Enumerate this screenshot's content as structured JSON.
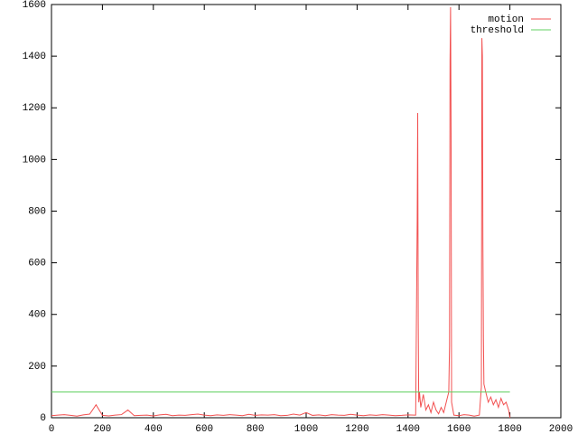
{
  "chart_data": {
    "type": "line",
    "xlim": [
      0,
      2000
    ],
    "xticks": [
      0,
      200,
      400,
      600,
      800,
      1000,
      1200,
      1400,
      1600,
      1800,
      2000
    ],
    "ylim": [
      0,
      1600
    ],
    "yticks": [
      0,
      200,
      400,
      600,
      800,
      1000,
      1200,
      1400,
      1600
    ],
    "legend": "top-right",
    "series": [
      {
        "name": "motion",
        "color": "#f25050",
        "x": [
          0,
          25,
          50,
          75,
          100,
          125,
          150,
          175,
          200,
          225,
          250,
          275,
          300,
          325,
          350,
          375,
          400,
          425,
          450,
          475,
          500,
          525,
          550,
          575,
          600,
          625,
          650,
          675,
          700,
          725,
          750,
          775,
          800,
          825,
          850,
          875,
          900,
          925,
          950,
          975,
          1000,
          1025,
          1050,
          1075,
          1100,
          1125,
          1150,
          1175,
          1200,
          1225,
          1250,
          1275,
          1300,
          1325,
          1350,
          1375,
          1400,
          1425,
          1430,
          1436,
          1438,
          1440,
          1442,
          1445,
          1450,
          1460,
          1470,
          1480,
          1490,
          1500,
          1510,
          1520,
          1530,
          1540,
          1550,
          1560,
          1563,
          1565,
          1567,
          1569,
          1571,
          1580,
          1600,
          1620,
          1640,
          1660,
          1680,
          1688,
          1690,
          1692,
          1694,
          1696,
          1698,
          1705,
          1715,
          1725,
          1735,
          1745,
          1755,
          1765,
          1775,
          1785,
          1795,
          1800
        ],
        "values": [
          8,
          10,
          12,
          9,
          6,
          11,
          14,
          50,
          9,
          7,
          10,
          12,
          30,
          8,
          9,
          10,
          7,
          11,
          13,
          8,
          10,
          9,
          12,
          14,
          10,
          8,
          11,
          9,
          12,
          10,
          8,
          13,
          9,
          11,
          10,
          12,
          8,
          9,
          14,
          10,
          20,
          9,
          11,
          8,
          12,
          10,
          9,
          13,
          10,
          8,
          11,
          9,
          12,
          10,
          8,
          9,
          11,
          10,
          10,
          760,
          1180,
          380,
          60,
          100,
          40,
          90,
          30,
          50,
          20,
          60,
          30,
          15,
          40,
          20,
          60,
          100,
          280,
          1380,
          1590,
          1100,
          60,
          10,
          8,
          12,
          10,
          6,
          10,
          120,
          1470,
          1400,
          670,
          310,
          130,
          100,
          60,
          80,
          50,
          70,
          40,
          75,
          50,
          60,
          30,
          0
        ]
      },
      {
        "name": "threshold",
        "color": "#60d060",
        "x": [
          0,
          1800
        ],
        "values": [
          100,
          100
        ]
      }
    ]
  }
}
